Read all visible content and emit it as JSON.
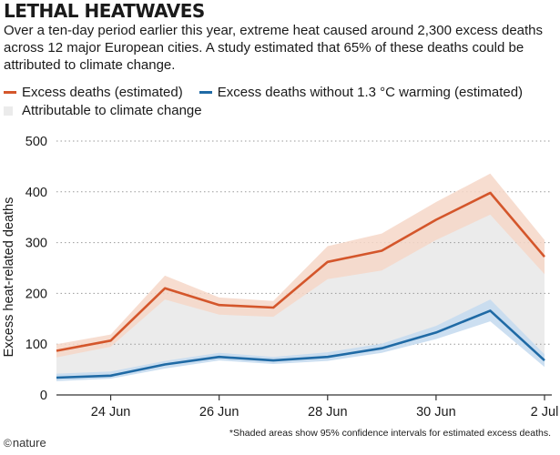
{
  "header": {
    "title": "LETHAL HEATWAVES",
    "subtitle": "Over a ten-day period earlier this year, extreme heat caused around 2,300 excess deaths across 12 major European cities. A study estimated that 65% of these deaths could be attributed to climate change."
  },
  "legend": {
    "excess": "Excess deaths (estimated)",
    "without": "Excess deaths without 1.3 °C warming (estimated)",
    "attributable": "Attributable to climate change"
  },
  "footnote": "*Shaded areas show 95% confidence intervals for estimated excess deaths.",
  "logo": {
    "symbol": "©",
    "text": "nature"
  },
  "colors": {
    "excess": "#d4562b",
    "excess_band": "#f6d7c8",
    "without": "#1f6aa5",
    "without_band": "#c7dcef",
    "attributable": "#ebebeb",
    "grid": "#9a9a9a",
    "text": "#1a1a1a"
  },
  "chart_data": {
    "type": "line",
    "x": [
      "23 Jun",
      "24 Jun",
      "25 Jun",
      "26 Jun",
      "27 Jun",
      "28 Jun",
      "29 Jun",
      "30 Jun",
      "1 Jul",
      "2 Jul"
    ],
    "xticks": [
      "24 Jun",
      "26 Jun",
      "28 Jun",
      "30 Jun",
      "2 Jul"
    ],
    "ylabel": "Excess heat-related deaths",
    "ylim": [
      0,
      500
    ],
    "yticks": [
      0,
      100,
      200,
      300,
      400,
      500
    ],
    "grid": "horizontal dotted",
    "series": [
      {
        "name": "Excess deaths (estimated)",
        "values": [
          87,
          107,
          210,
          177,
          172,
          262,
          284,
          345,
          398,
          272
        ],
        "lower": [
          74,
          95,
          188,
          158,
          154,
          228,
          245,
          305,
          355,
          238
        ],
        "upper": [
          100,
          119,
          235,
          192,
          185,
          293,
          318,
          380,
          436,
          305
        ]
      },
      {
        "name": "Excess deaths without 1.3 °C warming (estimated)",
        "values": [
          34,
          38,
          60,
          75,
          68,
          75,
          92,
          123,
          166,
          68
        ],
        "lower": [
          27,
          32,
          52,
          68,
          61,
          67,
          83,
          110,
          145,
          55
        ],
        "upper": [
          42,
          46,
          67,
          83,
          75,
          84,
          101,
          136,
          188,
          80
        ]
      }
    ]
  }
}
